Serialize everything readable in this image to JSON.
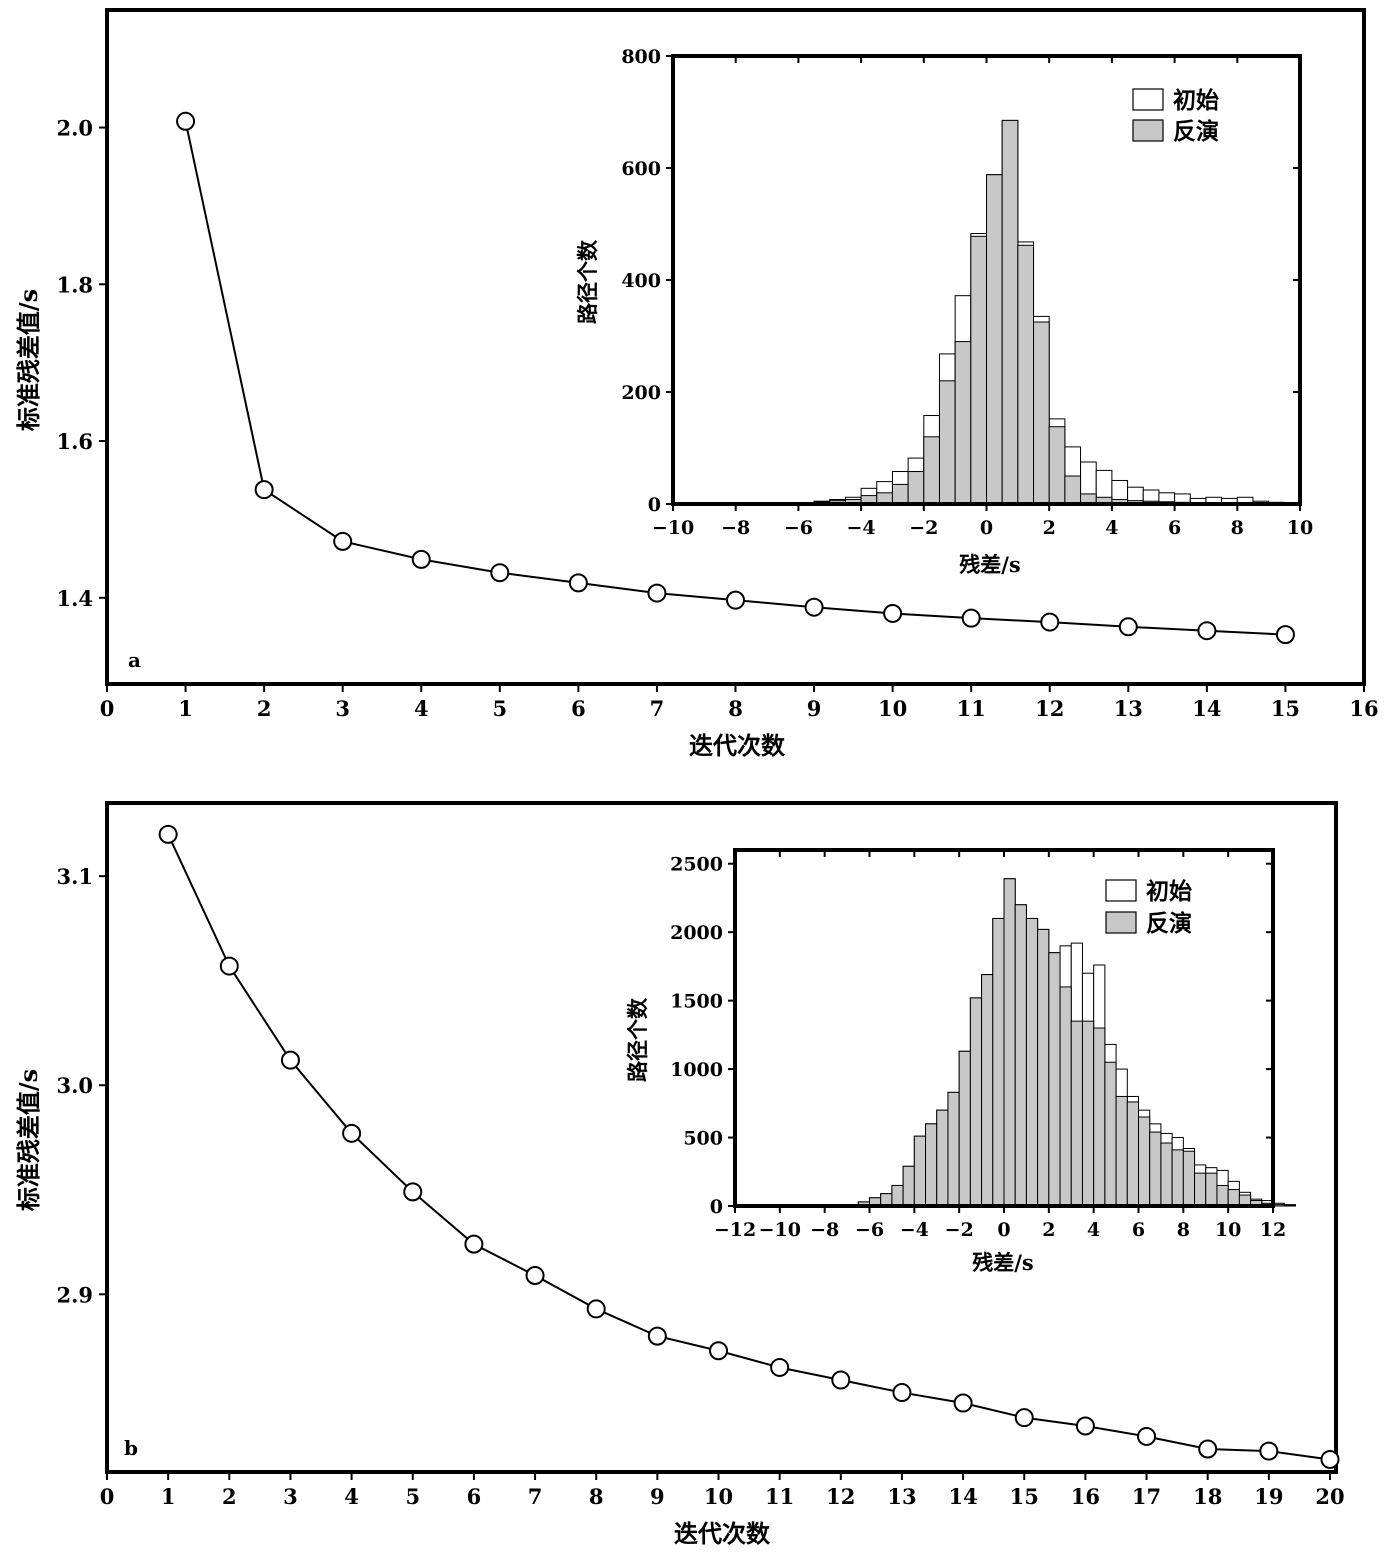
{
  "chart_data": [
    {
      "type": "line",
      "panel_label": "a",
      "xlabel": "迭代次数",
      "ylabel": "标准残差值/s",
      "xlim": [
        0,
        16
      ],
      "ylim": [
        1.29,
        2.15
      ],
      "xticks": [
        0,
        1,
        2,
        3,
        4,
        5,
        6,
        7,
        8,
        9,
        10,
        11,
        12,
        13,
        14,
        15,
        16
      ],
      "yticks": [
        1.4,
        1.6,
        1.8,
        2.0
      ],
      "ytick_labels": [
        "1.4",
        "1.6",
        "1.8",
        "2.0"
      ],
      "marker": "open-circle",
      "x": [
        1,
        2,
        3,
        4,
        5,
        6,
        7,
        8,
        9,
        10,
        11,
        12,
        13,
        14,
        15
      ],
      "y": [
        2.008,
        1.538,
        1.472,
        1.449,
        1.432,
        1.419,
        1.406,
        1.397,
        1.388,
        1.38,
        1.374,
        1.369,
        1.363,
        1.358,
        1.353
      ],
      "inset": {
        "type": "bar",
        "xlabel": "残差/s",
        "ylabel": "路径个数",
        "xlim": [
          -10,
          10
        ],
        "ylim": [
          0,
          800
        ],
        "xticks": [
          -10,
          -8,
          -6,
          -4,
          -2,
          0,
          2,
          4,
          6,
          8,
          10
        ],
        "xtick_labels": [
          "−10",
          "−8",
          "−6",
          "−4",
          "−2",
          "0",
          "2",
          "4",
          "6",
          "8",
          "10"
        ],
        "yticks": [
          0,
          200,
          400,
          600,
          800
        ],
        "bin_edges_start": -6,
        "bin_width": 0.5,
        "legend_position": "top-right",
        "series": [
          {
            "name": "初始",
            "color": "#ffffff",
            "values": [
              2,
              5,
              8,
              12,
              28,
              40,
              58,
              82,
              158,
              268,
              372,
              483,
              588,
              685,
              468,
              335,
              152,
              102,
              75,
              60,
              42,
              30,
              25,
              20,
              18,
              10,
              12,
              10,
              12,
              5,
              3
            ]
          },
          {
            "name": "反演",
            "color": "#c8c8c8",
            "values": [
              2,
              4,
              6,
              8,
              15,
              20,
              35,
              58,
              120,
              220,
              290,
              478,
              588,
              685,
              462,
              325,
              138,
              50,
              18,
              12,
              8,
              6,
              5,
              4,
              3,
              2,
              2,
              2,
              1,
              1,
              0
            ]
          }
        ]
      }
    },
    {
      "type": "line",
      "panel_label": "b",
      "xlabel": "迭代次数",
      "ylabel": "标准残差值/s",
      "xlim": [
        0,
        20.5
      ],
      "ylim": [
        2.815,
        3.135
      ],
      "xticks": [
        0,
        1,
        2,
        3,
        4,
        5,
        6,
        7,
        8,
        9,
        10,
        11,
        12,
        13,
        14,
        15,
        16,
        17,
        18,
        19,
        20
      ],
      "yticks": [
        2.9,
        3.0,
        3.1
      ],
      "ytick_labels": [
        "2.9",
        "3.0",
        "3.1"
      ],
      "marker": "open-circle",
      "x": [
        1,
        2,
        3,
        4,
        5,
        6,
        7,
        8,
        9,
        10,
        11,
        12,
        13,
        14,
        15,
        16,
        17,
        18,
        19,
        20
      ],
      "y": [
        3.12,
        3.057,
        3.012,
        2.977,
        2.949,
        2.924,
        2.909,
        2.893,
        2.88,
        2.873,
        2.865,
        2.859,
        2.853,
        2.848,
        2.841,
        2.837,
        2.832,
        2.826,
        2.825,
        2.821
      ],
      "inset": {
        "type": "bar",
        "xlabel": "残差/s",
        "ylabel": "路径个数",
        "xlim": [
          -12,
          12
        ],
        "ylim": [
          0,
          2600
        ],
        "xticks": [
          -12,
          -10,
          -8,
          -6,
          -4,
          -2,
          0,
          2,
          4,
          6,
          8,
          10,
          12
        ],
        "xtick_labels": [
          "−12",
          "−10",
          "−8",
          "−6",
          "−4",
          "−2",
          "0",
          "2",
          "4",
          "6",
          "8",
          "10",
          "12"
        ],
        "yticks": [
          0,
          500,
          1000,
          1500,
          2000,
          2500
        ],
        "bin_edges_start": -7,
        "bin_width": 0.5,
        "legend_position": "top-right",
        "series": [
          {
            "name": "初始",
            "color": "#ffffff",
            "values": [
              10,
              30,
              60,
              90,
              150,
              290,
              510,
              600,
              700,
              830,
              1130,
              1520,
              1690,
              2100,
              2390,
              2200,
              2100,
              2020,
              1850,
              1900,
              1920,
              1700,
              1760,
              1180,
              1000,
              800,
              700,
              600,
              530,
              500,
              420,
              300,
              280,
              260,
              180,
              100,
              50,
              40,
              20,
              10
            ]
          },
          {
            "name": "反演",
            "color": "#c8c8c8",
            "values": [
              10,
              30,
              60,
              90,
              150,
              290,
              510,
              600,
              700,
              830,
              1130,
              1520,
              1690,
              2100,
              2390,
              2200,
              2100,
              2020,
              1850,
              1600,
              1350,
              1350,
              1300,
              1050,
              800,
              760,
              650,
              540,
              460,
              410,
              400,
              240,
              240,
              150,
              120,
              80,
              40,
              20,
              10,
              5
            ]
          }
        ]
      }
    }
  ]
}
